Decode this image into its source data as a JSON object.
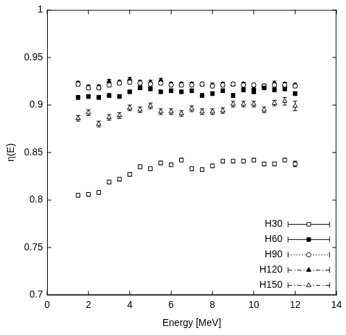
{
  "chart_data": {
    "type": "scatter",
    "x_label": "Energy [MeV]",
    "y_label": "η(E)",
    "x": [
      1.5,
      2,
      2.5,
      3,
      3.5,
      4,
      4.5,
      5,
      5.5,
      6,
      6.5,
      7,
      7.5,
      8,
      8.5,
      9,
      9.5,
      10,
      10.5,
      11,
      11.5,
      12
    ],
    "series": [
      {
        "name": "H30",
        "color": "#000000",
        "marker": "square-open",
        "line_style": "solid",
        "values": [
          0.805,
          0.806,
          0.808,
          0.819,
          0.822,
          0.827,
          0.835,
          0.833,
          0.839,
          0.837,
          0.842,
          0.833,
          0.832,
          0.836,
          0.841,
          0.841,
          0.841,
          0.842,
          0.838,
          0.838,
          0.842,
          0.838
        ],
        "errors": [
          0.002,
          0.002,
          0.002,
          0.002,
          0.002,
          0.002,
          0.002,
          0.002,
          0.002,
          0.002,
          0.002,
          0.002,
          0.002,
          0.002,
          0.002,
          0.002,
          0.002,
          0.002,
          0.002,
          0.002,
          0.002,
          0.003
        ]
      },
      {
        "name": "H60",
        "color": "#000000",
        "marker": "square",
        "line_style": "solid",
        "values": [
          0.908,
          0.909,
          0.908,
          0.91,
          0.909,
          0.914,
          0.918,
          0.917,
          0.914,
          0.915,
          0.914,
          0.915,
          0.91,
          0.912,
          0.915,
          0.91,
          0.916,
          0.914,
          0.918,
          0.916,
          0.917,
          0.912
        ],
        "errors": [
          0.002,
          0.002,
          0.002,
          0.002,
          0.002,
          0.002,
          0.002,
          0.002,
          0.002,
          0.002,
          0.002,
          0.002,
          0.002,
          0.002,
          0.002,
          0.002,
          0.002,
          0.002,
          0.002,
          0.002,
          0.002,
          0.002
        ]
      },
      {
        "name": "H90",
        "color": "#000000",
        "marker": "circle-open",
        "line_style": "dotted",
        "values": [
          0.922,
          0.918,
          0.918,
          0.921,
          0.923,
          0.924,
          0.923,
          0.922,
          0.923,
          0.921,
          0.921,
          0.921,
          0.922,
          0.92,
          0.921,
          0.922,
          0.921,
          0.921,
          0.92,
          0.921,
          0.921,
          0.92
        ],
        "errors": [
          0.002,
          0.002,
          0.002,
          0.002,
          0.002,
          0.002,
          0.002,
          0.002,
          0.002,
          0.002,
          0.002,
          0.002,
          0.002,
          0.002,
          0.002,
          0.002,
          0.002,
          0.002,
          0.002,
          0.002,
          0.002,
          0.002
        ]
      },
      {
        "name": "H120",
        "color": "#000000",
        "marker": "triangle",
        "line_style": "dashdot",
        "values": [
          0.923,
          0.919,
          0.919,
          0.925,
          0.924,
          0.927,
          0.924,
          0.924,
          0.926,
          0.922,
          0.922,
          0.922,
          0.922,
          0.921,
          0.922,
          0.922,
          0.922,
          0.918,
          0.92,
          0.923,
          0.922,
          0.921
        ],
        "errors": [
          0.002,
          0.002,
          0.002,
          0.002,
          0.002,
          0.002,
          0.002,
          0.002,
          0.002,
          0.002,
          0.002,
          0.002,
          0.002,
          0.002,
          0.002,
          0.002,
          0.002,
          0.002,
          0.002,
          0.002,
          0.002,
          0.002
        ]
      },
      {
        "name": "H150",
        "color": "#000000",
        "marker": "triangle-open",
        "line_style": "dashdot",
        "values": [
          0.886,
          0.892,
          0.88,
          0.887,
          0.889,
          0.897,
          0.895,
          0.899,
          0.893,
          0.893,
          0.891,
          0.896,
          0.893,
          0.893,
          0.894,
          0.901,
          0.901,
          0.901,
          0.895,
          0.902,
          0.904,
          0.899
        ],
        "errors": [
          0.003,
          0.003,
          0.003,
          0.003,
          0.003,
          0.003,
          0.003,
          0.003,
          0.003,
          0.003,
          0.003,
          0.003,
          0.003,
          0.003,
          0.003,
          0.003,
          0.003,
          0.003,
          0.003,
          0.003,
          0.004,
          0.005
        ]
      }
    ],
    "xlim": [
      0,
      14
    ],
    "xticks": [
      0,
      2,
      4,
      6,
      8,
      10,
      12,
      14
    ],
    "ylim": [
      0.7,
      1
    ],
    "yticks": [
      0.7,
      0.75,
      0.8,
      0.85,
      0.9,
      0.95,
      1
    ],
    "grid": false,
    "legend": "lower right"
  }
}
